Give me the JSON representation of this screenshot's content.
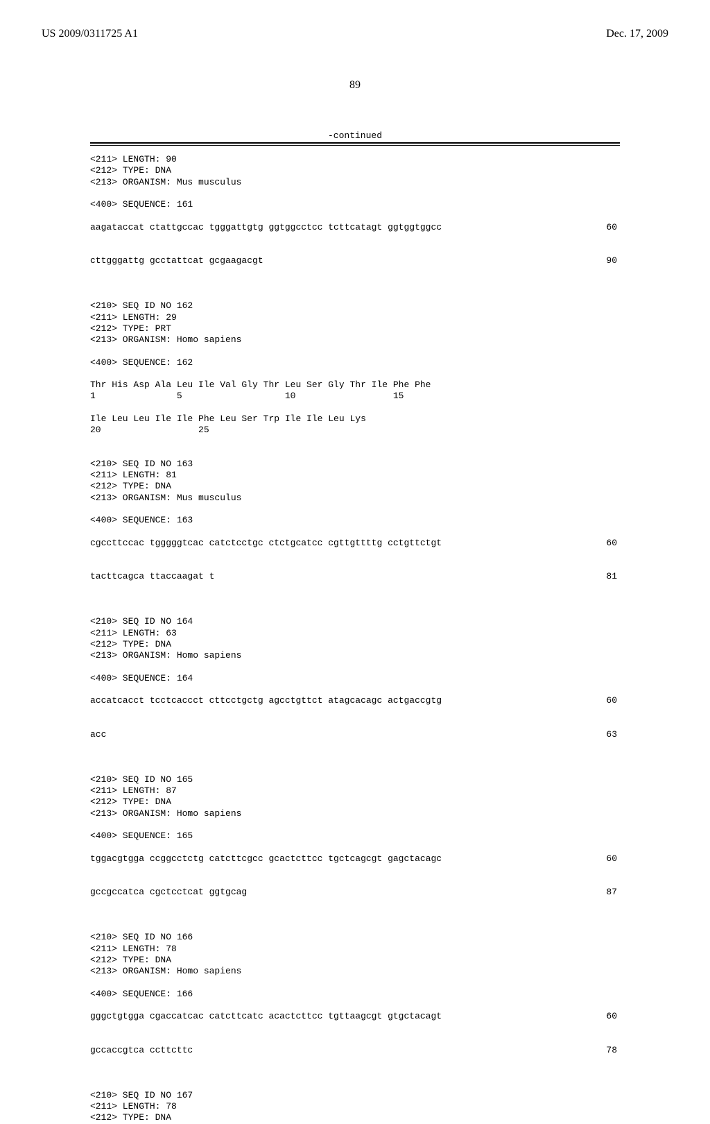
{
  "header": {
    "left": "US 2009/0311725 A1",
    "right": "Dec. 17, 2009"
  },
  "page_number": "89",
  "continued_label": "-continued",
  "entries": [
    {
      "lines": [
        "<211> LENGTH: 90",
        "<212> TYPE: DNA",
        "<213> ORGANISM: Mus musculus",
        "",
        "<400> SEQUENCE: 161"
      ],
      "sequence_rows": [
        {
          "text": "aagataccat ctattgccac tgggattgtg ggtggcctcc tcttcatagt ggtggtggcc",
          "num": "60"
        },
        {
          "text": "cttgggattg gcctattcat gcgaagacgt",
          "num": "90"
        }
      ]
    },
    {
      "lines": [
        "<210> SEQ ID NO 162",
        "<211> LENGTH: 29",
        "<212> TYPE: PRT",
        "<213> ORGANISM: Homo sapiens",
        "",
        "<400> SEQUENCE: 162",
        "",
        "Thr His Asp Ala Leu Ile Val Gly Thr Leu Ser Gly Thr Ile Phe Phe",
        "1               5                   10                  15",
        "",
        "Ile Leu Leu Ile Ile Phe Leu Ser Trp Ile Ile Leu Lys",
        "20                  25"
      ],
      "sequence_rows": []
    },
    {
      "lines": [
        "<210> SEQ ID NO 163",
        "<211> LENGTH: 81",
        "<212> TYPE: DNA",
        "<213> ORGANISM: Mus musculus",
        "",
        "<400> SEQUENCE: 163"
      ],
      "sequence_rows": [
        {
          "text": "cgccttccac tgggggtcac catctcctgc ctctgcatcc cgttgttttg cctgttctgt",
          "num": "60"
        },
        {
          "text": "tacttcagca ttaccaagat t",
          "num": "81"
        }
      ]
    },
    {
      "lines": [
        "<210> SEQ ID NO 164",
        "<211> LENGTH: 63",
        "<212> TYPE: DNA",
        "<213> ORGANISM: Homo sapiens",
        "",
        "<400> SEQUENCE: 164"
      ],
      "sequence_rows": [
        {
          "text": "accatcacct tcctcaccct cttcctgctg agcctgttct atagcacagc actgaccgtg",
          "num": "60"
        },
        {
          "text": "acc",
          "num": "63"
        }
      ]
    },
    {
      "lines": [
        "<210> SEQ ID NO 165",
        "<211> LENGTH: 87",
        "<212> TYPE: DNA",
        "<213> ORGANISM: Homo sapiens",
        "",
        "<400> SEQUENCE: 165"
      ],
      "sequence_rows": [
        {
          "text": "tggacgtgga ccggcctctg catcttcgcc gcactcttcc tgctcagcgt gagctacagc",
          "num": "60"
        },
        {
          "text": "gccgccatca cgctcctcat ggtgcag",
          "num": "87"
        }
      ]
    },
    {
      "lines": [
        "<210> SEQ ID NO 166",
        "<211> LENGTH: 78",
        "<212> TYPE: DNA",
        "<213> ORGANISM: Homo sapiens",
        "",
        "<400> SEQUENCE: 166"
      ],
      "sequence_rows": [
        {
          "text": "gggctgtgga cgaccatcac catcttcatc acactcttcc tgttaagcgt gtgctacagt",
          "num": "60"
        },
        {
          "text": "gccaccgtca ccttcttc",
          "num": "78"
        }
      ]
    },
    {
      "lines": [
        "<210> SEQ ID NO 167",
        "<211> LENGTH: 78",
        "<212> TYPE: DNA"
      ],
      "sequence_rows": []
    }
  ]
}
